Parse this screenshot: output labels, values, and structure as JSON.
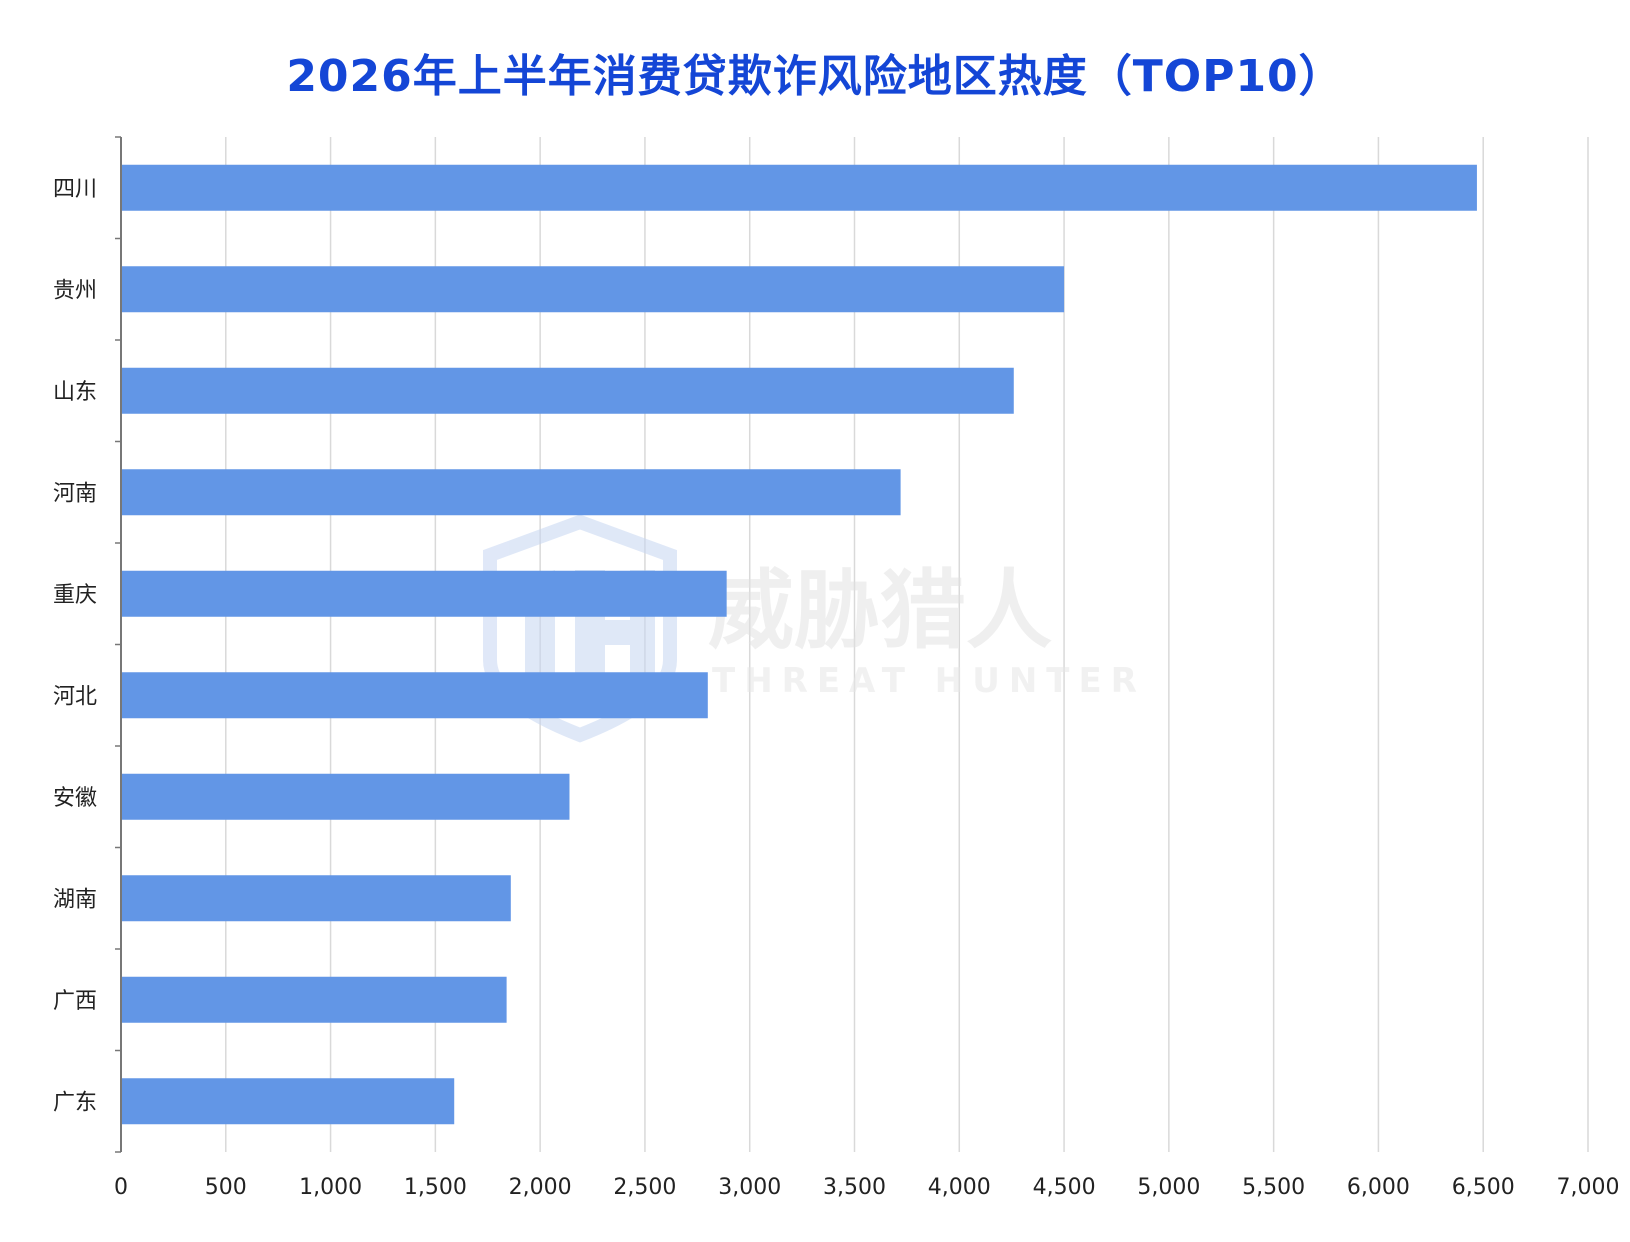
{
  "chart_data": {
    "type": "bar",
    "orientation": "horizontal",
    "title": "2026年上半年消费贷欺诈风险地区热度（TOP10）",
    "categories": [
      "四川",
      "贵州",
      "山东",
      "河南",
      "重庆",
      "河北",
      "安徽",
      "湖南",
      "广西",
      "广东"
    ],
    "values": [
      6470,
      4500,
      4260,
      3720,
      2890,
      2800,
      2140,
      1860,
      1840,
      1590
    ],
    "xlim": [
      0,
      7000
    ],
    "xticks": [
      0,
      500,
      1000,
      1500,
      2000,
      2500,
      3000,
      3500,
      4000,
      4500,
      5000,
      5500,
      6000,
      6500,
      7000
    ],
    "xtick_labels": [
      "0",
      "500",
      "1,000",
      "1,500",
      "2,000",
      "2,500",
      "3,000",
      "3,500",
      "4,000",
      "4,500",
      "5,000",
      "5,500",
      "6,000",
      "6,500",
      "7,000"
    ],
    "xlabel": "",
    "ylabel": "",
    "grid": "vertical",
    "legend": "none",
    "bar_color": "#6296e6",
    "title_color": "#1446d6"
  },
  "watermark": {
    "text_cn": "威胁猎人",
    "text_en": "THREAT HUNTER",
    "logo": "shield-th-logo"
  }
}
